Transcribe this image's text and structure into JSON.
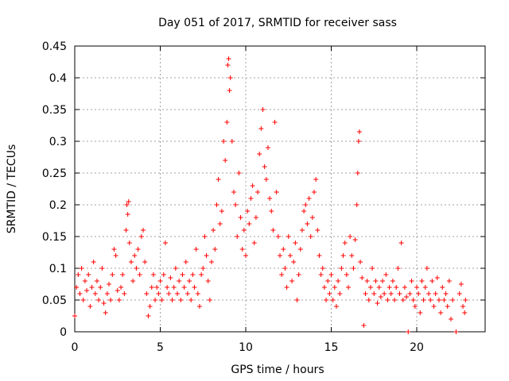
{
  "chart_data": {
    "type": "scatter",
    "title": "Day 051 of 2017, SRMTID for receiver sass",
    "xlabel": "GPS time / hours",
    "ylabel": "SRMTID / TECUs",
    "xlim": [
      0,
      24
    ],
    "ylim": [
      0,
      0.45
    ],
    "x_ticks": [
      0,
      5,
      10,
      15,
      20
    ],
    "y_ticks": [
      0,
      0.05,
      0.1,
      0.15,
      0.2,
      0.25,
      0.3,
      0.35,
      0.4,
      0.45
    ],
    "x_tick_labels": [
      "0",
      "5",
      "10",
      "15",
      "20"
    ],
    "y_tick_labels": [
      "0",
      "0.05",
      "0.1",
      "0.15",
      "0.2",
      "0.25",
      "0.3",
      "0.35",
      "0.4",
      "0.45"
    ],
    "grid": true,
    "marker": "+",
    "series": [
      {
        "name": "sass",
        "color": "#ff0000",
        "points": [
          [
            0.0,
            0.025
          ],
          [
            0.1,
            0.07
          ],
          [
            0.2,
            0.09
          ],
          [
            0.3,
            0.06
          ],
          [
            0.4,
            0.1
          ],
          [
            0.5,
            0.05
          ],
          [
            0.6,
            0.08
          ],
          [
            0.7,
            0.065
          ],
          [
            0.8,
            0.09
          ],
          [
            0.9,
            0.04
          ],
          [
            1.0,
            0.07
          ],
          [
            1.1,
            0.11
          ],
          [
            1.2,
            0.06
          ],
          [
            1.3,
            0.08
          ],
          [
            1.4,
            0.05
          ],
          [
            1.5,
            0.07
          ],
          [
            1.6,
            0.1
          ],
          [
            1.7,
            0.045
          ],
          [
            1.8,
            0.03
          ],
          [
            1.9,
            0.06
          ],
          [
            2.0,
            0.075
          ],
          [
            2.1,
            0.05
          ],
          [
            2.2,
            0.09
          ],
          [
            2.3,
            0.13
          ],
          [
            2.4,
            0.12
          ],
          [
            2.5,
            0.065
          ],
          [
            2.6,
            0.05
          ],
          [
            2.7,
            0.07
          ],
          [
            2.8,
            0.09
          ],
          [
            2.9,
            0.06
          ],
          [
            3.0,
            0.16
          ],
          [
            3.05,
            0.2
          ],
          [
            3.1,
            0.185
          ],
          [
            3.15,
            0.205
          ],
          [
            3.2,
            0.14
          ],
          [
            3.3,
            0.11
          ],
          [
            3.4,
            0.08
          ],
          [
            3.5,
            0.12
          ],
          [
            3.6,
            0.1
          ],
          [
            3.7,
            0.13
          ],
          [
            3.8,
            0.09
          ],
          [
            3.9,
            0.15
          ],
          [
            4.0,
            0.16
          ],
          [
            4.1,
            0.11
          ],
          [
            4.2,
            0.06
          ],
          [
            4.3,
            0.025
          ],
          [
            4.4,
            0.04
          ],
          [
            4.5,
            0.07
          ],
          [
            4.6,
            0.09
          ],
          [
            4.7,
            0.05
          ],
          [
            4.8,
            0.07
          ],
          [
            4.9,
            0.06
          ],
          [
            5.0,
            0.08
          ],
          [
            5.1,
            0.05
          ],
          [
            5.2,
            0.09
          ],
          [
            5.3,
            0.14
          ],
          [
            5.4,
            0.07
          ],
          [
            5.5,
            0.06
          ],
          [
            5.6,
            0.085
          ],
          [
            5.7,
            0.05
          ],
          [
            5.8,
            0.07
          ],
          [
            5.9,
            0.1
          ],
          [
            6.0,
            0.06
          ],
          [
            6.1,
            0.08
          ],
          [
            6.2,
            0.05
          ],
          [
            6.3,
            0.09
          ],
          [
            6.4,
            0.07
          ],
          [
            6.5,
            0.11
          ],
          [
            6.6,
            0.06
          ],
          [
            6.7,
            0.08
          ],
          [
            6.8,
            0.05
          ],
          [
            6.9,
            0.09
          ],
          [
            7.0,
            0.07
          ],
          [
            7.1,
            0.13
          ],
          [
            7.2,
            0.06
          ],
          [
            7.3,
            0.04
          ],
          [
            7.4,
            0.09
          ],
          [
            7.5,
            0.1
          ],
          [
            7.6,
            0.15
          ],
          [
            7.7,
            0.12
          ],
          [
            7.8,
            0.08
          ],
          [
            7.9,
            0.05
          ],
          [
            8.0,
            0.11
          ],
          [
            8.1,
            0.16
          ],
          [
            8.2,
            0.13
          ],
          [
            8.3,
            0.2
          ],
          [
            8.4,
            0.24
          ],
          [
            8.5,
            0.17
          ],
          [
            8.6,
            0.19
          ],
          [
            8.7,
            0.3
          ],
          [
            8.8,
            0.27
          ],
          [
            8.9,
            0.33
          ],
          [
            8.95,
            0.42
          ],
          [
            9.0,
            0.43
          ],
          [
            9.05,
            0.38
          ],
          [
            9.1,
            0.4
          ],
          [
            9.2,
            0.3
          ],
          [
            9.3,
            0.22
          ],
          [
            9.4,
            0.2
          ],
          [
            9.5,
            0.15
          ],
          [
            9.6,
            0.25
          ],
          [
            9.7,
            0.18
          ],
          [
            9.8,
            0.13
          ],
          [
            9.9,
            0.16
          ],
          [
            10.0,
            0.12
          ],
          [
            10.1,
            0.19
          ],
          [
            10.2,
            0.17
          ],
          [
            10.3,
            0.21
          ],
          [
            10.4,
            0.23
          ],
          [
            10.5,
            0.14
          ],
          [
            10.6,
            0.18
          ],
          [
            10.7,
            0.22
          ],
          [
            10.8,
            0.28
          ],
          [
            10.9,
            0.32
          ],
          [
            11.0,
            0.35
          ],
          [
            11.1,
            0.26
          ],
          [
            11.2,
            0.24
          ],
          [
            11.3,
            0.29
          ],
          [
            11.4,
            0.21
          ],
          [
            11.5,
            0.19
          ],
          [
            11.6,
            0.16
          ],
          [
            11.7,
            0.33
          ],
          [
            11.8,
            0.22
          ],
          [
            11.9,
            0.15
          ],
          [
            12.0,
            0.12
          ],
          [
            12.1,
            0.09
          ],
          [
            12.2,
            0.13
          ],
          [
            12.3,
            0.1
          ],
          [
            12.4,
            0.07
          ],
          [
            12.5,
            0.15
          ],
          [
            12.6,
            0.12
          ],
          [
            12.7,
            0.08
          ],
          [
            12.8,
            0.11
          ],
          [
            12.9,
            0.14
          ],
          [
            13.0,
            0.05
          ],
          [
            13.1,
            0.09
          ],
          [
            13.2,
            0.13
          ],
          [
            13.3,
            0.16
          ],
          [
            13.4,
            0.19
          ],
          [
            13.5,
            0.2
          ],
          [
            13.6,
            0.17
          ],
          [
            13.7,
            0.21
          ],
          [
            13.8,
            0.15
          ],
          [
            13.9,
            0.18
          ],
          [
            14.0,
            0.22
          ],
          [
            14.1,
            0.24
          ],
          [
            14.2,
            0.16
          ],
          [
            14.3,
            0.12
          ],
          [
            14.4,
            0.09
          ],
          [
            14.5,
            0.1
          ],
          [
            14.6,
            0.07
          ],
          [
            14.7,
            0.05
          ],
          [
            14.8,
            0.08
          ],
          [
            14.9,
            0.06
          ],
          [
            15.0,
            0.09
          ],
          [
            15.1,
            0.05
          ],
          [
            15.2,
            0.07
          ],
          [
            15.3,
            0.04
          ],
          [
            15.4,
            0.08
          ],
          [
            15.5,
            0.06
          ],
          [
            15.6,
            0.1
          ],
          [
            15.7,
            0.12
          ],
          [
            15.8,
            0.14
          ],
          [
            15.9,
            0.09
          ],
          [
            16.0,
            0.07
          ],
          [
            16.1,
            0.15
          ],
          [
            16.2,
            0.12
          ],
          [
            16.3,
            0.1
          ],
          [
            16.4,
            0.145
          ],
          [
            16.5,
            0.2
          ],
          [
            16.55,
            0.25
          ],
          [
            16.6,
            0.3
          ],
          [
            16.65,
            0.315
          ],
          [
            16.7,
            0.11
          ],
          [
            16.8,
            0.085
          ],
          [
            16.9,
            0.01
          ],
          [
            17.0,
            0.06
          ],
          [
            17.1,
            0.08
          ],
          [
            17.2,
            0.05
          ],
          [
            17.3,
            0.07
          ],
          [
            17.4,
            0.1
          ],
          [
            17.5,
            0.06
          ],
          [
            17.6,
            0.08
          ],
          [
            17.7,
            0.045
          ],
          [
            17.8,
            0.07
          ],
          [
            17.9,
            0.055
          ],
          [
            18.0,
            0.08
          ],
          [
            18.1,
            0.06
          ],
          [
            18.2,
            0.09
          ],
          [
            18.3,
            0.05
          ],
          [
            18.4,
            0.07
          ],
          [
            18.5,
            0.06
          ],
          [
            18.6,
            0.08
          ],
          [
            18.7,
            0.05
          ],
          [
            18.8,
            0.07
          ],
          [
            18.9,
            0.1
          ],
          [
            19.0,
            0.06
          ],
          [
            19.1,
            0.14
          ],
          [
            19.2,
            0.05
          ],
          [
            19.3,
            0.07
          ],
          [
            19.4,
            0.055
          ],
          [
            19.5,
            0.0
          ],
          [
            19.6,
            0.06
          ],
          [
            19.7,
            0.08
          ],
          [
            19.8,
            0.05
          ],
          [
            19.9,
            0.04
          ],
          [
            20.0,
            0.07
          ],
          [
            20.1,
            0.06
          ],
          [
            20.2,
            0.03
          ],
          [
            20.3,
            0.08
          ],
          [
            20.4,
            0.05
          ],
          [
            20.5,
            0.07
          ],
          [
            20.6,
            0.1
          ],
          [
            20.7,
            0.06
          ],
          [
            20.8,
            0.05
          ],
          [
            20.9,
            0.08
          ],
          [
            21.0,
            0.04
          ],
          [
            21.1,
            0.06
          ],
          [
            21.2,
            0.085
          ],
          [
            21.3,
            0.05
          ],
          [
            21.4,
            0.03
          ],
          [
            21.5,
            0.07
          ],
          [
            21.6,
            0.05
          ],
          [
            21.7,
            0.06
          ],
          [
            21.8,
            0.04
          ],
          [
            21.9,
            0.08
          ],
          [
            22.0,
            0.02
          ],
          [
            22.1,
            0.05
          ],
          [
            22.3,
            0.0
          ],
          [
            22.5,
            0.06
          ],
          [
            22.6,
            0.075
          ],
          [
            22.7,
            0.04
          ],
          [
            22.8,
            0.03
          ],
          [
            22.85,
            0.05
          ]
        ]
      }
    ]
  }
}
